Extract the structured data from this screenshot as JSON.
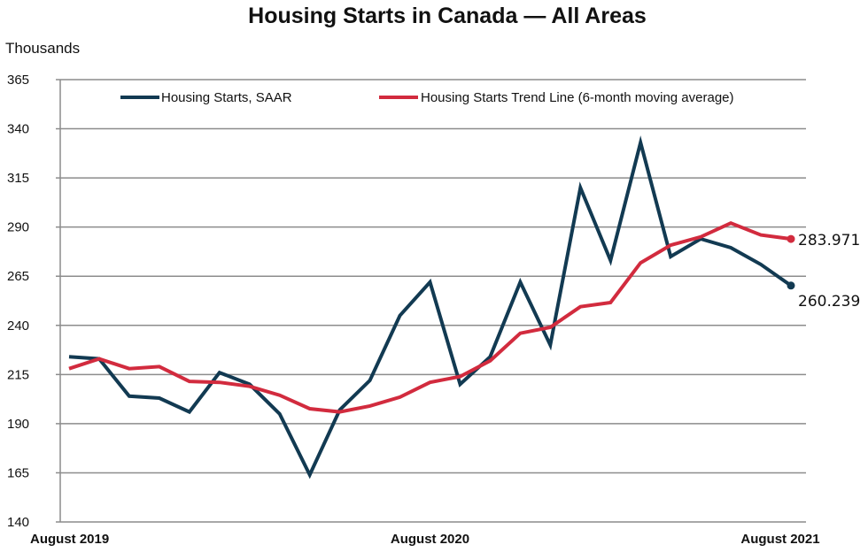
{
  "chart_data": {
    "type": "line",
    "title": "Housing Starts in Canada — All Areas",
    "ylabel": "Thousands",
    "xlabel": "",
    "ylim": [
      140,
      365
    ],
    "yticks": [
      140,
      165,
      190,
      215,
      240,
      265,
      290,
      315,
      340,
      365
    ],
    "grid": true,
    "legend_position": "top",
    "x": [
      "Aug 2019",
      "Sep 2019",
      "Oct 2019",
      "Nov 2019",
      "Dec 2019",
      "Jan 2020",
      "Feb 2020",
      "Mar 2020",
      "Apr 2020",
      "May 2020",
      "Jun 2020",
      "Jul 2020",
      "Aug 2020",
      "Sep 2020",
      "Oct 2020",
      "Nov 2020",
      "Dec 2020",
      "Jan 2021",
      "Feb 2021",
      "Mar 2021",
      "Apr 2021",
      "May 2021",
      "Jun 2021",
      "Jul 2021",
      "Aug 2021"
    ],
    "xtick_labels": [
      {
        "index": 0,
        "label": "August 2019"
      },
      {
        "index": 12,
        "label": "August 2020"
      },
      {
        "index": 24,
        "label": "August 2021"
      }
    ],
    "series": [
      {
        "name": "Housing Starts, SAAR",
        "color": "#123a52",
        "values": [
          224,
          223,
          204,
          203,
          196,
          216,
          210,
          195,
          164,
          197,
          212,
          245,
          262,
          210,
          224,
          262,
          230,
          310,
          273,
          333,
          275,
          284,
          279.5,
          271,
          260.239
        ],
        "end_label": "260.239"
      },
      {
        "name": "Housing Starts Trend Line (6-month moving average)",
        "color": "#d22b3e",
        "values": [
          218,
          223,
          218,
          219,
          211.5,
          211,
          209,
          204.5,
          197.6,
          196,
          199,
          203.5,
          211,
          214,
          222,
          236,
          239,
          249.5,
          251.6,
          271.8,
          280.8,
          285,
          292,
          286,
          283.971
        ],
        "end_label": "283.971"
      }
    ]
  }
}
